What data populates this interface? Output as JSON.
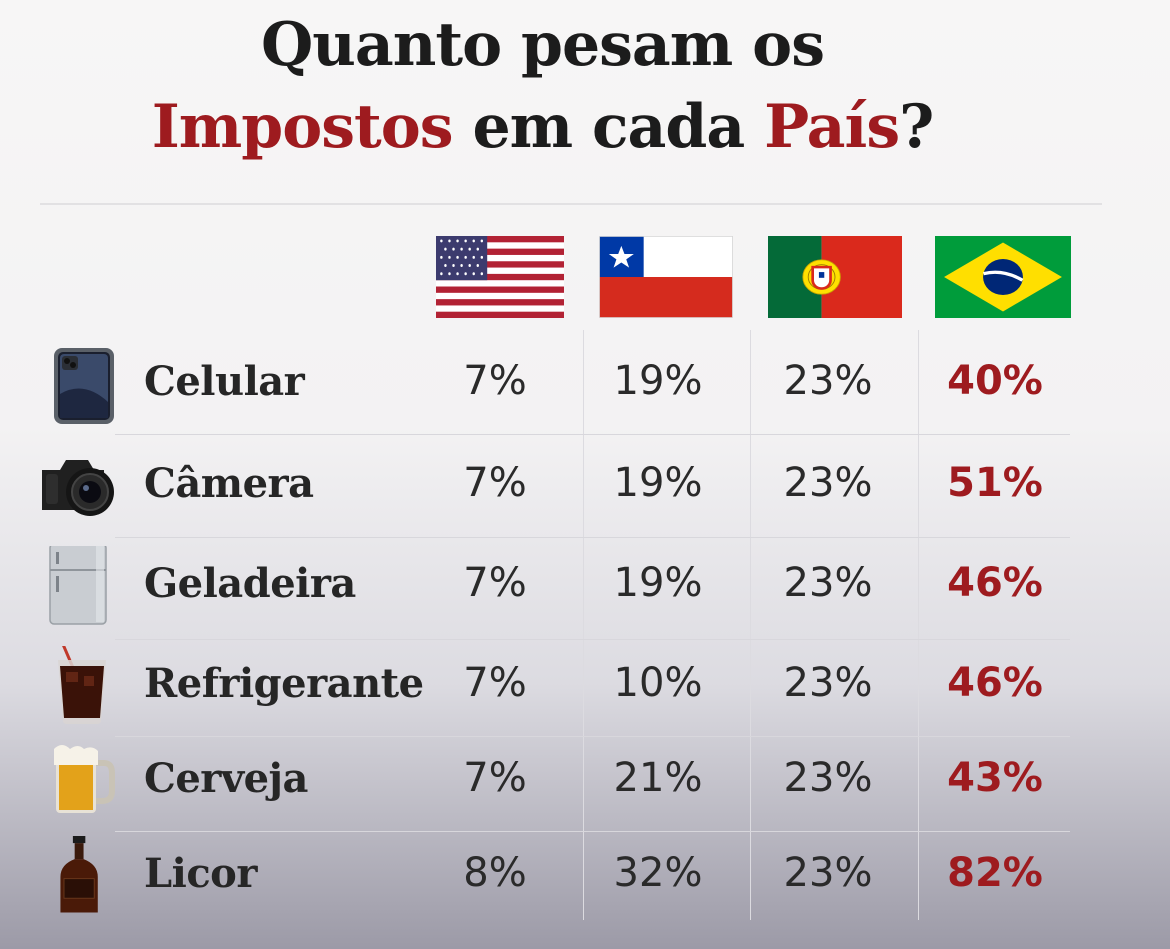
{
  "title": {
    "line1": "Quanto pesam os",
    "line2_highlight1": "Impostos",
    "line2_middle": " em cada ",
    "line2_highlight2": "País",
    "line2_end": "?"
  },
  "countries": [
    {
      "flag": "usa-flag"
    },
    {
      "flag": "chile-flag"
    },
    {
      "flag": "portugal-flag"
    },
    {
      "flag": "brazil-flag"
    }
  ],
  "colors": {
    "accent": "#9e1b1f",
    "text": "#262626"
  },
  "rows": [
    {
      "icon": "smartphone-icon",
      "label": "Celular",
      "us": "7%",
      "cl": "19%",
      "pt": "23%",
      "br": "40%"
    },
    {
      "icon": "camera-icon",
      "label": "Câmera",
      "us": "7%",
      "cl": "19%",
      "pt": "23%",
      "br": "51%"
    },
    {
      "icon": "fridge-icon",
      "label": "Geladeira",
      "us": "7%",
      "cl": "19%",
      "pt": "23%",
      "br": "46%"
    },
    {
      "icon": "soda-glass-icon",
      "label": "Refrigerante",
      "us": "7%",
      "cl": "10%",
      "pt": "23%",
      "br": "46%"
    },
    {
      "icon": "beer-mug-icon",
      "label": "Cerveja",
      "us": "7%",
      "cl": "21%",
      "pt": "23%",
      "br": "43%"
    },
    {
      "icon": "liquor-bottle-icon",
      "label": "Licor",
      "us": "8%",
      "cl": "32%",
      "pt": "23%",
      "br": "82%"
    }
  ]
}
